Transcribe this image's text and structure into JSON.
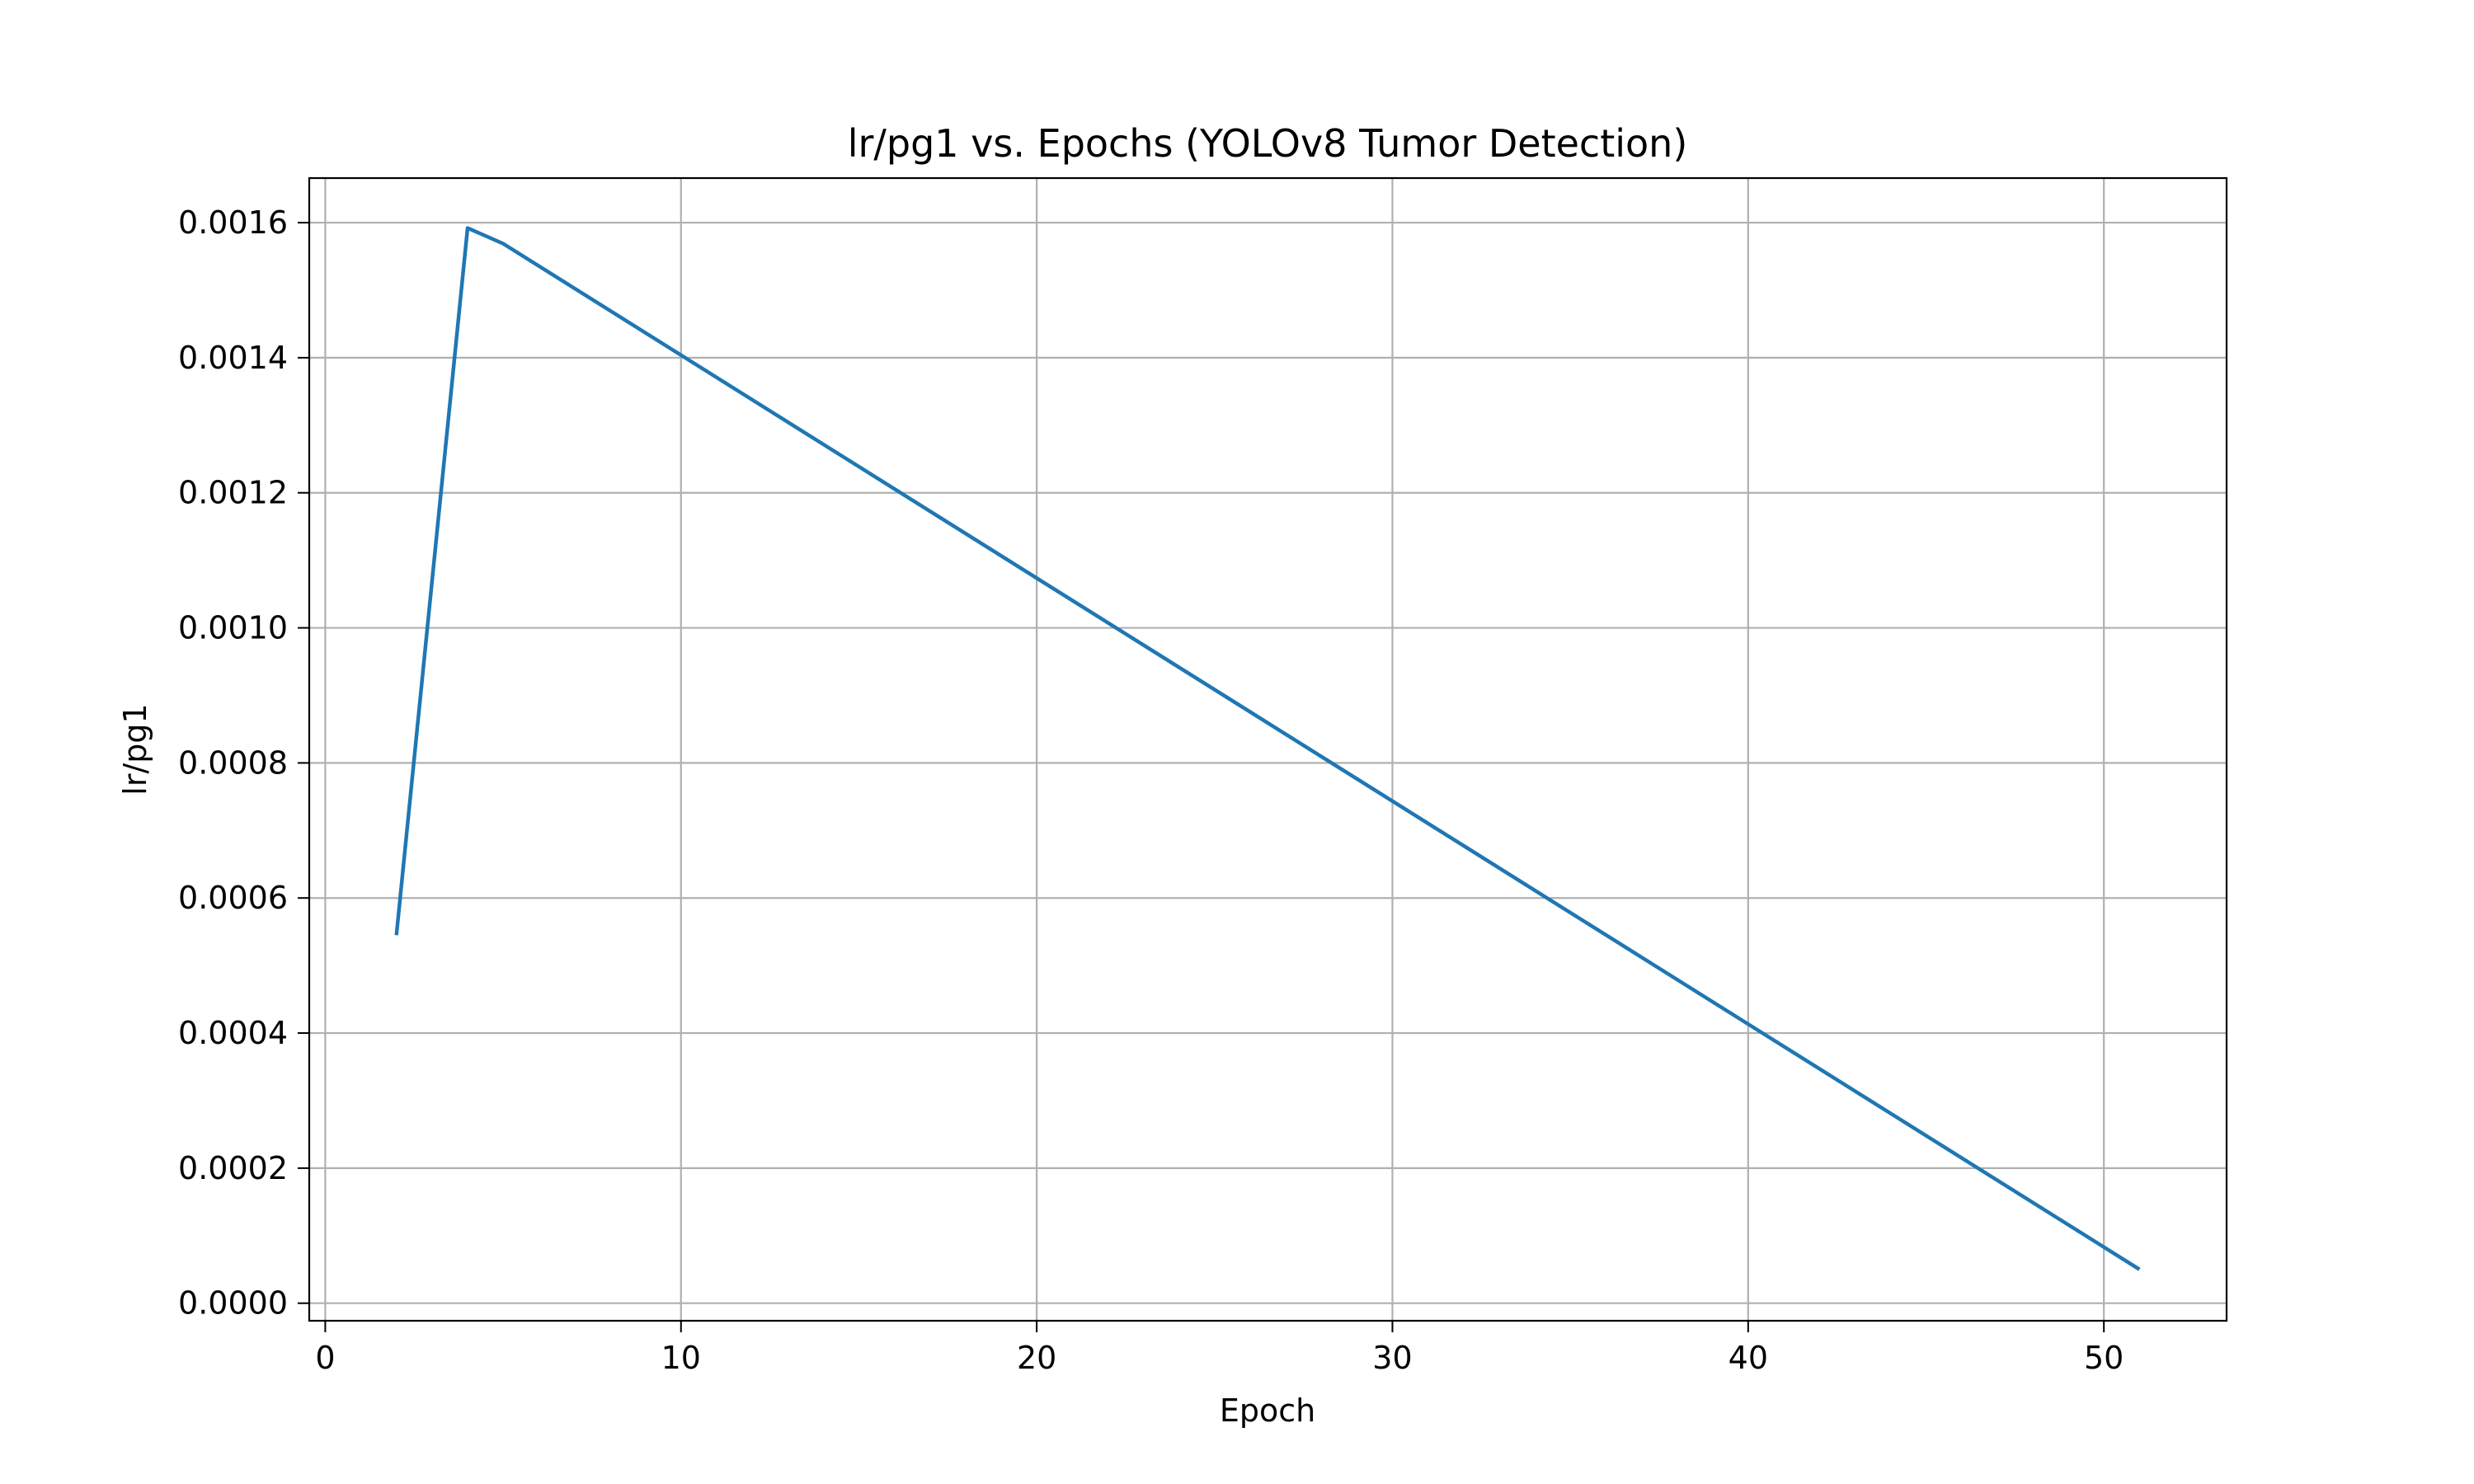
{
  "chart_data": {
    "type": "line",
    "title": "lr/pg1 vs. Epochs (YOLOv8 Tumor Detection)",
    "xlabel": "Epoch",
    "ylabel": "lr/pg1",
    "xlim": [
      -0.45,
      53.45
    ],
    "ylim": [
      -2.6e-05,
      0.001666
    ],
    "grid": true,
    "x_ticks": [
      0,
      10,
      20,
      30,
      40,
      50
    ],
    "x_tick_labels": [
      "0",
      "10",
      "20",
      "30",
      "40",
      "50"
    ],
    "y_ticks": [
      0,
      0.0002,
      0.0004,
      0.0006,
      0.0008,
      0.001,
      0.0012,
      0.0014,
      0.0016
    ],
    "y_tick_labels": [
      "0.0000",
      "0.0002",
      "0.0004",
      "0.0006",
      "0.0008",
      "0.0010",
      "0.0012",
      "0.0014",
      "0.0016"
    ],
    "colors": {
      "line": "#1f77b4"
    },
    "series": [
      {
        "x": [
          2,
          4,
          5,
          51
        ],
        "y": [
          0.000545,
          0.001592,
          0.001569,
          5e-05
        ]
      }
    ]
  }
}
